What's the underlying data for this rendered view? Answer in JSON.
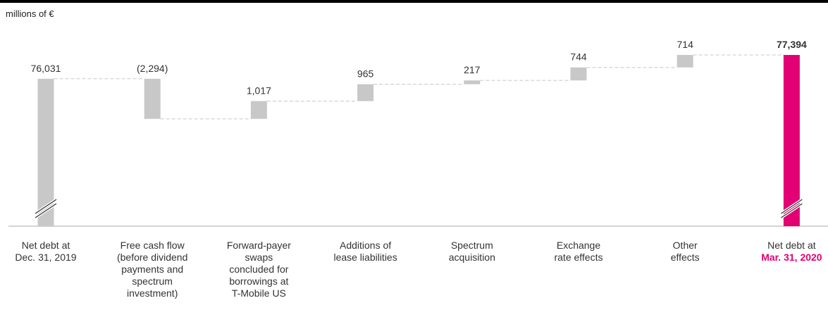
{
  "unit_label": "millions of €",
  "colors": {
    "bar": "#c8c8c8",
    "accent": "#e20074",
    "connector": "#c8c8c8",
    "baseline": "#aaaaaa"
  },
  "chart_data": {
    "type": "bar",
    "subtype": "waterfall",
    "title": "",
    "xlabel": "",
    "ylabel": "",
    "unit": "millions of €",
    "y_axis_break": true,
    "categories": [
      "Net debt at\nDec. 31, 2019",
      "Free cash flow\n(before dividend\npayments and\nspectrum\ninvestment)",
      "Forward-payer\nswaps\nconcluded for\nborrowings at\nT-Mobile US",
      "Additions of\nlease liabilities",
      "Spectrum\nacquisition",
      "Exchange\nrate effects",
      "Other\neffects",
      "Net debt at"
    ],
    "category_highlight": [
      "",
      "",
      "",
      "",
      "",
      "",
      "",
      "Mar. 31, 2020"
    ],
    "values": [
      76031,
      -2294,
      1017,
      965,
      217,
      744,
      714,
      77394
    ],
    "labels": [
      "76,031",
      "(2,294)",
      "1,017",
      "965",
      "217",
      "744",
      "714",
      "77,394"
    ],
    "measure": [
      "total",
      "relative",
      "relative",
      "relative",
      "relative",
      "relative",
      "relative",
      "total"
    ],
    "highlight_index": 7
  }
}
